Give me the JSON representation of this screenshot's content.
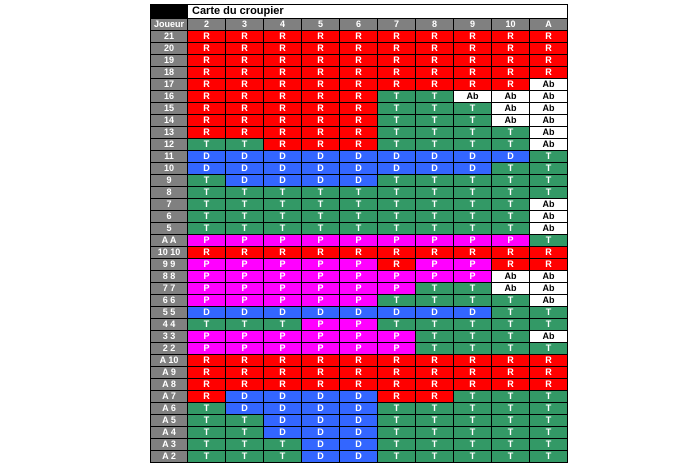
{
  "colors": {
    "R": "#ff0000",
    "T": "#339966",
    "D": "#3366ff",
    "P": "#ff00ff",
    "Ab": "#ffffff",
    "header_bg": "#808080",
    "header_text": "#ffffff",
    "title_box": "#000000",
    "cell_text": "#ffffff",
    "surrender_text": "#000000"
  },
  "chart_data": {
    "type": "table",
    "title": "Carte du croupier",
    "row_header": "Joueur",
    "columns": [
      "2",
      "3",
      "4",
      "5",
      "6",
      "7",
      "8",
      "9",
      "10",
      "A"
    ],
    "cell_codes": [
      "R",
      "T",
      "D",
      "P",
      "Ab"
    ],
    "rows": [
      {
        "label": "21",
        "values": [
          "R",
          "R",
          "R",
          "R",
          "R",
          "R",
          "R",
          "R",
          "R",
          "R"
        ]
      },
      {
        "label": "20",
        "values": [
          "R",
          "R",
          "R",
          "R",
          "R",
          "R",
          "R",
          "R",
          "R",
          "R"
        ]
      },
      {
        "label": "19",
        "values": [
          "R",
          "R",
          "R",
          "R",
          "R",
          "R",
          "R",
          "R",
          "R",
          "R"
        ]
      },
      {
        "label": "18",
        "values": [
          "R",
          "R",
          "R",
          "R",
          "R",
          "R",
          "R",
          "R",
          "R",
          "R"
        ]
      },
      {
        "label": "17",
        "values": [
          "R",
          "R",
          "R",
          "R",
          "R",
          "R",
          "R",
          "R",
          "R",
          "Ab"
        ]
      },
      {
        "label": "16",
        "values": [
          "R",
          "R",
          "R",
          "R",
          "R",
          "T",
          "T",
          "Ab",
          "Ab",
          "Ab"
        ]
      },
      {
        "label": "15",
        "values": [
          "R",
          "R",
          "R",
          "R",
          "R",
          "T",
          "T",
          "T",
          "Ab",
          "Ab"
        ]
      },
      {
        "label": "14",
        "values": [
          "R",
          "R",
          "R",
          "R",
          "R",
          "T",
          "T",
          "T",
          "Ab",
          "Ab"
        ]
      },
      {
        "label": "13",
        "values": [
          "R",
          "R",
          "R",
          "R",
          "R",
          "T",
          "T",
          "T",
          "T",
          "Ab"
        ]
      },
      {
        "label": "12",
        "values": [
          "T",
          "T",
          "R",
          "R",
          "R",
          "T",
          "T",
          "T",
          "T",
          "Ab"
        ]
      },
      {
        "label": "11",
        "values": [
          "D",
          "D",
          "D",
          "D",
          "D",
          "D",
          "D",
          "D",
          "D",
          "T"
        ]
      },
      {
        "label": "10",
        "values": [
          "D",
          "D",
          "D",
          "D",
          "D",
          "D",
          "D",
          "D",
          "T",
          "T"
        ]
      },
      {
        "label": "9",
        "values": [
          "T",
          "D",
          "D",
          "D",
          "D",
          "T",
          "T",
          "T",
          "T",
          "T"
        ]
      },
      {
        "label": "8",
        "values": [
          "T",
          "T",
          "T",
          "T",
          "T",
          "T",
          "T",
          "T",
          "T",
          "T"
        ]
      },
      {
        "label": "7",
        "values": [
          "T",
          "T",
          "T",
          "T",
          "T",
          "T",
          "T",
          "T",
          "T",
          "Ab"
        ]
      },
      {
        "label": "6",
        "values": [
          "T",
          "T",
          "T",
          "T",
          "T",
          "T",
          "T",
          "T",
          "T",
          "Ab"
        ]
      },
      {
        "label": "5",
        "values": [
          "T",
          "T",
          "T",
          "T",
          "T",
          "T",
          "T",
          "T",
          "T",
          "Ab"
        ]
      },
      {
        "label": "A A",
        "values": [
          "P",
          "P",
          "P",
          "P",
          "P",
          "P",
          "P",
          "P",
          "P",
          "T"
        ]
      },
      {
        "label": "10 10",
        "values": [
          "R",
          "R",
          "R",
          "R",
          "R",
          "R",
          "R",
          "R",
          "R",
          "R"
        ]
      },
      {
        "label": "9 9",
        "values": [
          "P",
          "P",
          "P",
          "P",
          "P",
          "R",
          "P",
          "P",
          "R",
          "R"
        ]
      },
      {
        "label": "8 8",
        "values": [
          "P",
          "P",
          "P",
          "P",
          "P",
          "P",
          "P",
          "P",
          "Ab",
          "Ab"
        ]
      },
      {
        "label": "7 7",
        "values": [
          "P",
          "P",
          "P",
          "P",
          "P",
          "P",
          "T",
          "T",
          "Ab",
          "Ab"
        ]
      },
      {
        "label": "6 6",
        "values": [
          "P",
          "P",
          "P",
          "P",
          "P",
          "T",
          "T",
          "T",
          "T",
          "Ab"
        ]
      },
      {
        "label": "5 5",
        "values": [
          "D",
          "D",
          "D",
          "D",
          "D",
          "D",
          "D",
          "D",
          "T",
          "T"
        ]
      },
      {
        "label": "4 4",
        "values": [
          "T",
          "T",
          "T",
          "P",
          "P",
          "T",
          "T",
          "T",
          "T",
          "T"
        ]
      },
      {
        "label": "3 3",
        "values": [
          "P",
          "P",
          "P",
          "P",
          "P",
          "P",
          "T",
          "T",
          "T",
          "Ab"
        ]
      },
      {
        "label": "2 2",
        "values": [
          "P",
          "P",
          "P",
          "P",
          "P",
          "P",
          "T",
          "T",
          "T",
          "T"
        ]
      },
      {
        "label": "A 10",
        "values": [
          "R",
          "R",
          "R",
          "R",
          "R",
          "R",
          "R",
          "R",
          "R",
          "R"
        ]
      },
      {
        "label": "A 9",
        "values": [
          "R",
          "R",
          "R",
          "R",
          "R",
          "R",
          "R",
          "R",
          "R",
          "R"
        ]
      },
      {
        "label": "A 8",
        "values": [
          "R",
          "R",
          "R",
          "R",
          "R",
          "R",
          "R",
          "R",
          "R",
          "R"
        ]
      },
      {
        "label": "A 7",
        "values": [
          "R",
          "D",
          "D",
          "D",
          "D",
          "R",
          "R",
          "T",
          "T",
          "T"
        ]
      },
      {
        "label": "A 6",
        "values": [
          "T",
          "D",
          "D",
          "D",
          "D",
          "T",
          "T",
          "T",
          "T",
          "T"
        ]
      },
      {
        "label": "A 5",
        "values": [
          "T",
          "T",
          "D",
          "D",
          "D",
          "T",
          "T",
          "T",
          "T",
          "T"
        ]
      },
      {
        "label": "A 4",
        "values": [
          "T",
          "T",
          "D",
          "D",
          "D",
          "T",
          "T",
          "T",
          "T",
          "T"
        ]
      },
      {
        "label": "A 3",
        "values": [
          "T",
          "T",
          "T",
          "D",
          "D",
          "T",
          "T",
          "T",
          "T",
          "T"
        ]
      },
      {
        "label": "A 2",
        "values": [
          "T",
          "T",
          "T",
          "D",
          "D",
          "T",
          "T",
          "T",
          "T",
          "T"
        ]
      }
    ]
  }
}
